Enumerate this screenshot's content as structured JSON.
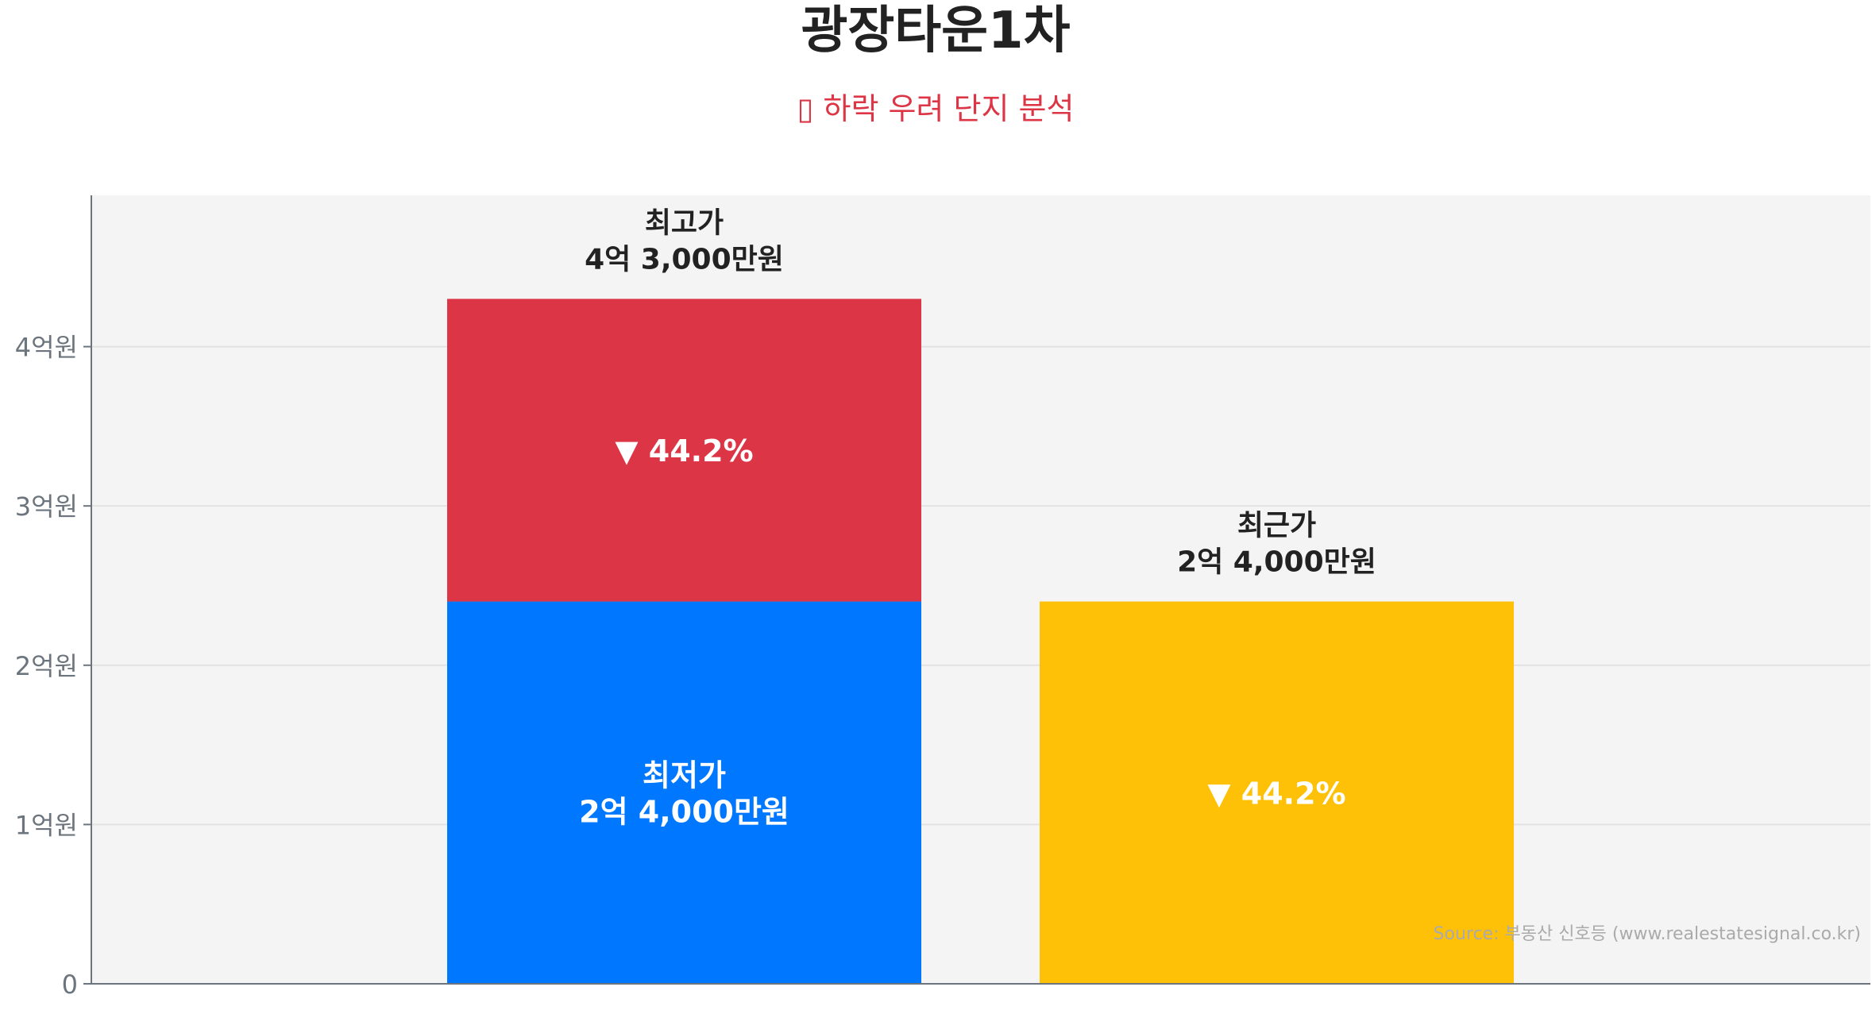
{
  "chart_data": {
    "type": "bar",
    "title": "광장타운1차",
    "subtitle": "▯ 하락 우려 단지 분석",
    "ylim": [
      0,
      4.95
    ],
    "y_unit": "억원",
    "yticks": [
      {
        "value": 0,
        "label": "0"
      },
      {
        "value": 1,
        "label": "1억원"
      },
      {
        "value": 2,
        "label": "2억원"
      },
      {
        "value": 3,
        "label": "3억원"
      },
      {
        "value": 4,
        "label": "4억원"
      }
    ],
    "grid": true,
    "bars": [
      {
        "name": "lowest",
        "category": 0,
        "base": 0,
        "value": 2.4,
        "color": "#0077ff",
        "inner_label": [
          "최저가",
          "2억 4,000만원"
        ]
      },
      {
        "name": "highest-gap",
        "category": 0,
        "base": 2.4,
        "value": 4.3,
        "color": "#dc3545",
        "inner_label": [
          "▼ 44.2%"
        ],
        "top_label": [
          "최고가",
          "4억 3,000만원"
        ]
      },
      {
        "name": "recent",
        "category": 1,
        "base": 0,
        "value": 2.4,
        "color": "#ffc107",
        "inner_label": [
          "▼ 44.2%"
        ],
        "top_label": [
          "최근가",
          "2억 4,000만원"
        ]
      }
    ],
    "colors": {
      "title": "#222222",
      "subtitle": "#dc3545",
      "plot_bg": "#f4f4f4",
      "axis": "#6c757d"
    },
    "source": "Source: 부동산 신호등 (www.realestatesignal.co.kr)"
  }
}
